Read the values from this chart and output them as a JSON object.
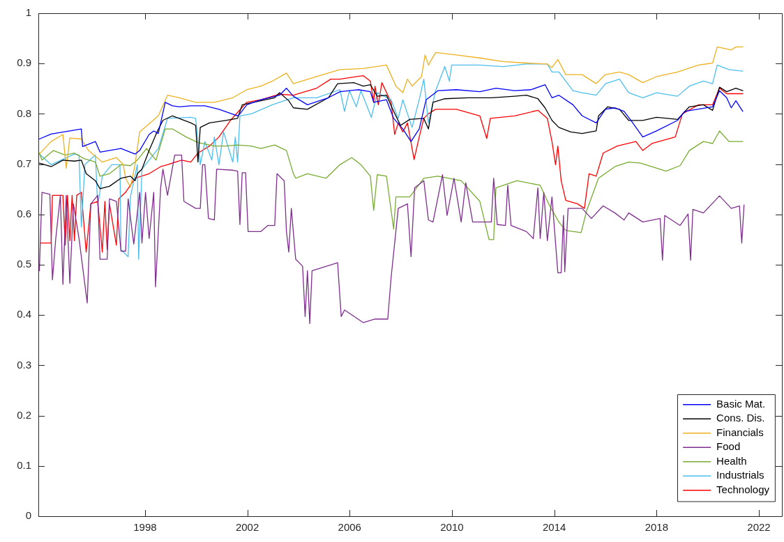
{
  "chart_data": {
    "type": "line",
    "xlim": [
      1993.83,
      2022.9
    ],
    "xticks": [
      1998,
      2002,
      2006,
      2010,
      2014,
      2018,
      2022
    ],
    "ylim": [
      0,
      1
    ],
    "yticks": [
      0,
      0.1,
      0.2,
      0.3,
      0.4,
      0.5,
      0.6,
      0.7,
      0.8,
      0.9,
      1
    ],
    "legend": "bottom right",
    "line_style": "solid",
    "series": [
      {
        "name": "Basic Mat.",
        "color": "#0000ff",
        "x": [
          1993.87,
          1994.33,
          1995.51,
          1995.56,
          1996.06,
          1996.24,
          1997.06,
          1997.61,
          1997.79,
          1998.16,
          1998.34,
          1998.52,
          1998.79,
          1999.07,
          1999.34,
          1999.79,
          2000.34,
          2000.89,
          2001.62,
          2001.71,
          2001.98,
          2002.53,
          2003.26,
          2003.53,
          2003.8,
          2004.35,
          2005.17,
          2005.62,
          2006.35,
          2006.81,
          2006.94,
          2007.44,
          2007.72,
          2008.08,
          2008.4,
          2008.72,
          2008.99,
          2009.45,
          2010.17,
          2011.09,
          2011.72,
          2012.45,
          2013.09,
          2013.64,
          2013.91,
          2014.18,
          2014.73,
          2015.09,
          2015.64,
          2016.0,
          2016.37,
          2016.73,
          2017.0,
          2017.46,
          2018.0,
          2018.82,
          2019.1,
          2020.19,
          2020.46,
          2020.74,
          2020.92,
          2021.1,
          2021.37
        ],
        "values": [
          0.75,
          0.76,
          0.77,
          0.735,
          0.745,
          0.724,
          0.731,
          0.72,
          0.727,
          0.759,
          0.766,
          0.761,
          0.823,
          0.816,
          0.814,
          0.816,
          0.816,
          0.809,
          0.796,
          0.8,
          0.818,
          0.828,
          0.837,
          0.851,
          0.835,
          0.818,
          0.832,
          0.844,
          0.848,
          0.844,
          0.823,
          0.828,
          0.791,
          0.77,
          0.745,
          0.77,
          0.828,
          0.846,
          0.848,
          0.844,
          0.851,
          0.846,
          0.848,
          0.858,
          0.832,
          0.837,
          0.818,
          0.796,
          0.782,
          0.809,
          0.812,
          0.805,
          0.787,
          0.754,
          0.766,
          0.787,
          0.805,
          0.814,
          0.846,
          0.832,
          0.812,
          0.826,
          0.805
        ]
      },
      {
        "name": "Cons. Dis.",
        "color": "#000000",
        "x": [
          1993.87,
          1994.33,
          1994.79,
          1995.24,
          1995.51,
          1995.7,
          1996.06,
          1996.24,
          1996.61,
          1997.06,
          1997.43,
          1997.61,
          1997.7,
          1997.88,
          1998.16,
          1998.47,
          1998.7,
          1999.07,
          1999.43,
          1999.79,
          1999.98,
          2000.07,
          2000.16,
          2000.52,
          2001.16,
          2001.62,
          2001.8,
          2002.53,
          2003.07,
          2003.26,
          2003.62,
          2003.8,
          2004.35,
          2005.17,
          2005.53,
          2006.17,
          2006.53,
          2006.81,
          2007.08,
          2007.44,
          2007.72,
          2007.99,
          2008.35,
          2008.9,
          2009.08,
          2009.26,
          2009.72,
          2010.63,
          2011.54,
          2012.45,
          2012.91,
          2013.36,
          2013.64,
          2013.91,
          2014.18,
          2014.64,
          2015.09,
          2015.64,
          2015.73,
          2016.09,
          2016.55,
          2016.91,
          2017.46,
          2018.0,
          2018.82,
          2019.28,
          2019.83,
          2020.19,
          2020.46,
          2020.74,
          2021.1,
          2021.37
        ],
        "values": [
          0.702,
          0.695,
          0.708,
          0.706,
          0.708,
          0.681,
          0.667,
          0.651,
          0.656,
          0.672,
          0.676,
          0.667,
          0.681,
          0.69,
          0.727,
          0.764,
          0.787,
          0.796,
          0.789,
          0.782,
          0.777,
          0.704,
          0.773,
          0.782,
          0.787,
          0.791,
          0.818,
          0.826,
          0.832,
          0.842,
          0.826,
          0.812,
          0.809,
          0.832,
          0.86,
          0.862,
          0.855,
          0.858,
          0.835,
          0.837,
          0.805,
          0.777,
          0.789,
          0.791,
          0.77,
          0.823,
          0.83,
          0.832,
          0.832,
          0.835,
          0.837,
          0.83,
          0.812,
          0.787,
          0.773,
          0.764,
          0.761,
          0.766,
          0.796,
          0.814,
          0.809,
          0.787,
          0.787,
          0.793,
          0.789,
          0.814,
          0.818,
          0.807,
          0.853,
          0.844,
          0.851,
          0.846
        ]
      },
      {
        "name": "Financials",
        "color": "#edb120",
        "x": [
          1993.87,
          1994.33,
          1994.79,
          1994.92,
          1995.06,
          1995.51,
          1995.79,
          1996.33,
          1996.88,
          1997.15,
          1997.24,
          1997.43,
          1997.61,
          1997.79,
          1998.16,
          1998.52,
          1998.88,
          1999.34,
          1999.98,
          2000.71,
          2001.43,
          2001.98,
          2002.53,
          2002.98,
          2003.53,
          2003.8,
          2004.71,
          2005.62,
          2006.53,
          2007.44,
          2007.81,
          2008.08,
          2008.26,
          2008.44,
          2008.81,
          2008.95,
          2009.08,
          2009.36,
          2010.17,
          2011.09,
          2012.0,
          2012.91,
          2013.73,
          2013.91,
          2014.14,
          2014.45,
          2015.09,
          2015.64,
          2016.0,
          2016.55,
          2016.91,
          2017.46,
          2018.0,
          2018.82,
          2019.64,
          2020.19,
          2020.37,
          2020.92,
          2021.1,
          2021.37
        ],
        "values": [
          0.72,
          0.745,
          0.759,
          0.692,
          0.752,
          0.75,
          0.727,
          0.704,
          0.713,
          0.699,
          0.672,
          0.654,
          0.699,
          0.764,
          0.78,
          0.796,
          0.837,
          0.832,
          0.823,
          0.823,
          0.832,
          0.848,
          0.855,
          0.865,
          0.881,
          0.86,
          0.874,
          0.888,
          0.89,
          0.897,
          0.855,
          0.842,
          0.869,
          0.855,
          0.874,
          0.917,
          0.897,
          0.922,
          0.917,
          0.911,
          0.904,
          0.901,
          0.899,
          0.892,
          0.908,
          0.878,
          0.878,
          0.86,
          0.878,
          0.883,
          0.878,
          0.862,
          0.874,
          0.883,
          0.897,
          0.901,
          0.933,
          0.927,
          0.933,
          0.933
        ]
      },
      {
        "name": "Food",
        "color": "#7e2f8e",
        "x": [
          1993.87,
          1993.97,
          1994.28,
          1994.38,
          1994.51,
          1994.69,
          1994.79,
          1994.92,
          1995.06,
          1995.2,
          1995.42,
          1995.74,
          1995.88,
          1996.15,
          1996.24,
          1996.52,
          1996.61,
          1996.88,
          1997.06,
          1997.24,
          1997.34,
          1997.56,
          1997.79,
          1997.88,
          1998.02,
          1998.16,
          1998.34,
          1998.41,
          1998.61,
          1998.7,
          1998.88,
          1999.16,
          1999.43,
          1999.52,
          1999.98,
          2000.16,
          2000.25,
          2000.34,
          2000.48,
          2000.71,
          2000.8,
          2001.43,
          2001.62,
          2001.71,
          2001.8,
          2001.93,
          2002.03,
          2002.53,
          2002.8,
          2003.07,
          2003.16,
          2003.44,
          2003.53,
          2003.62,
          2003.72,
          2003.89,
          2004.16,
          2004.26,
          2004.35,
          2004.44,
          2004.53,
          2005.53,
          2005.67,
          2005.8,
          2006.53,
          2006.99,
          2007.49,
          2007.62,
          2007.9,
          2008.26,
          2008.4,
          2008.54,
          2008.9,
          2009.08,
          2009.26,
          2009.63,
          2009.81,
          2010.08,
          2010.36,
          2010.54,
          2010.81,
          2011.54,
          2011.63,
          2011.77,
          2012.09,
          2012.18,
          2012.31,
          2012.91,
          2013.18,
          2013.36,
          2013.45,
          2013.59,
          2013.73,
          2013.91,
          2014.14,
          2014.27,
          2014.36,
          2014.41,
          2014.54,
          2015.09,
          2015.45,
          2015.91,
          2016.37,
          2016.73,
          2016.91,
          2017.46,
          2018.14,
          2018.23,
          2018.32,
          2018.92,
          2019.23,
          2019.33,
          2019.42,
          2019.83,
          2020.46,
          2020.92,
          2021.24,
          2021.33,
          2021.42
        ],
        "values": [
          0.488,
          0.644,
          0.64,
          0.47,
          0.552,
          0.638,
          0.461,
          0.638,
          0.463,
          0.621,
          0.552,
          0.424,
          0.621,
          0.638,
          0.511,
          0.511,
          0.631,
          0.626,
          0.527,
          0.527,
          0.631,
          0.541,
          0.644,
          0.543,
          0.644,
          0.552,
          0.644,
          0.456,
          0.653,
          0.69,
          0.638,
          0.718,
          0.718,
          0.626,
          0.612,
          0.612,
          0.699,
          0.699,
          0.592,
          0.589,
          0.69,
          0.688,
          0.686,
          0.58,
          0.683,
          0.683,
          0.566,
          0.566,
          0.578,
          0.578,
          0.681,
          0.667,
          0.566,
          0.525,
          0.612,
          0.511,
          0.497,
          0.397,
          0.488,
          0.383,
          0.488,
          0.504,
          0.397,
          0.41,
          0.385,
          0.392,
          0.392,
          0.474,
          0.612,
          0.621,
          0.516,
          0.653,
          0.667,
          0.589,
          0.585,
          0.679,
          0.598,
          0.672,
          0.585,
          0.663,
          0.585,
          0.585,
          0.672,
          0.58,
          0.578,
          0.658,
          0.578,
          0.566,
          0.552,
          0.653,
          0.552,
          0.644,
          0.548,
          0.635,
          0.484,
          0.484,
          0.598,
          0.486,
          0.612,
          0.612,
          0.592,
          0.617,
          0.603,
          0.589,
          0.603,
          0.585,
          0.592,
          0.509,
          0.598,
          0.578,
          0.601,
          0.509,
          0.61,
          0.603,
          0.637,
          0.612,
          0.617,
          0.543,
          0.619
        ]
      },
      {
        "name": "Health",
        "color": "#77ac30",
        "x": [
          1993.87,
          1993.97,
          1994.42,
          1994.88,
          1995.24,
          1995.61,
          1996.06,
          1996.24,
          1996.61,
          1997.06,
          1997.43,
          1997.7,
          1998.06,
          1998.43,
          1998.79,
          1999.07,
          1999.61,
          2000.07,
          2000.71,
          2001.16,
          2001.62,
          2002.16,
          2002.53,
          2003.07,
          2003.53,
          2003.8,
          2003.89,
          2004.35,
          2005.08,
          2005.62,
          2006.08,
          2006.44,
          2006.81,
          2006.94,
          2007.08,
          2007.44,
          2007.72,
          2007.81,
          2008.35,
          2008.9,
          2009.45,
          2010.36,
          2011.09,
          2011.45,
          2011.63,
          2011.72,
          2012.54,
          2013.45,
          2013.82,
          2014.18,
          2014.45,
          2015.05,
          2015.27,
          2015.73,
          2016.37,
          2016.91,
          2017.37,
          2018.37,
          2018.92,
          2019.28,
          2019.83,
          2020.19,
          2020.46,
          2020.83,
          2021.37
        ],
        "values": [
          0.722,
          0.708,
          0.727,
          0.718,
          0.722,
          0.711,
          0.704,
          0.676,
          0.681,
          0.699,
          0.697,
          0.708,
          0.731,
          0.708,
          0.77,
          0.77,
          0.754,
          0.743,
          0.736,
          0.736,
          0.738,
          0.736,
          0.731,
          0.738,
          0.727,
          0.681,
          0.672,
          0.681,
          0.672,
          0.699,
          0.713,
          0.699,
          0.676,
          0.608,
          0.679,
          0.676,
          0.571,
          0.635,
          0.635,
          0.672,
          0.676,
          0.667,
          0.626,
          0.55,
          0.55,
          0.653,
          0.667,
          0.658,
          0.617,
          0.585,
          0.568,
          0.564,
          0.608,
          0.672,
          0.695,
          0.704,
          0.702,
          0.686,
          0.697,
          0.727,
          0.745,
          0.741,
          0.766,
          0.745,
          0.745
        ]
      },
      {
        "name": "Industrials",
        "color": "#4dbeee",
        "x": [
          1993.87,
          1994.33,
          1995.24,
          1995.42,
          1995.51,
          1995.65,
          1996.06,
          1996.15,
          1996.33,
          1996.7,
          1997.02,
          1997.06,
          1997.34,
          1997.43,
          1997.7,
          1997.75,
          1997.88,
          1998.52,
          1998.88,
          1999.79,
          1999.98,
          2000.16,
          2000.34,
          2000.61,
          2000.71,
          2000.89,
          2001.07,
          2001.43,
          2001.53,
          2001.62,
          2001.71,
          2002.16,
          2002.98,
          2003.44,
          2003.8,
          2004.71,
          2005.62,
          2005.8,
          2005.99,
          2006.26,
          2006.44,
          2006.85,
          2007.08,
          2007.62,
          2007.9,
          2008.08,
          2008.44,
          2008.72,
          2008.9,
          2009.08,
          2009.36,
          2009.72,
          2009.9,
          2009.99,
          2011.09,
          2012.0,
          2012.91,
          2013.73,
          2013.91,
          2014.18,
          2014.73,
          2015.09,
          2015.64,
          2016.0,
          2016.55,
          2016.91,
          2017.46,
          2018.0,
          2018.82,
          2019.28,
          2019.83,
          2020.19,
          2020.37,
          2020.83,
          2021.37
        ],
        "values": [
          0.72,
          0.699,
          0.72,
          0.718,
          0.575,
          0.699,
          0.718,
          0.617,
          0.676,
          0.699,
          0.699,
          0.53,
          0.516,
          0.635,
          0.699,
          0.511,
          0.69,
          0.731,
          0.791,
          0.793,
          0.791,
          0.699,
          0.745,
          0.708,
          0.754,
          0.699,
          0.764,
          0.704,
          0.754,
          0.704,
          0.796,
          0.8,
          0.818,
          0.826,
          0.832,
          0.832,
          0.848,
          0.805,
          0.846,
          0.814,
          0.846,
          0.793,
          0.842,
          0.828,
          0.791,
          0.828,
          0.773,
          0.828,
          0.869,
          0.782,
          0.846,
          0.894,
          0.865,
          0.897,
          0.897,
          0.894,
          0.899,
          0.899,
          0.883,
          0.883,
          0.846,
          0.842,
          0.837,
          0.86,
          0.869,
          0.842,
          0.832,
          0.842,
          0.835,
          0.855,
          0.865,
          0.86,
          0.897,
          0.888,
          0.885
        ]
      },
      {
        "name": "Technology",
        "color": "#ff0000",
        "x": [
          1993.92,
          1994.33,
          1994.38,
          1994.79,
          1994.88,
          1994.97,
          1995.06,
          1995.15,
          1995.24,
          1995.33,
          1995.51,
          1995.7,
          1995.88,
          1996.15,
          1996.33,
          1996.43,
          1996.52,
          1996.61,
          1996.88,
          1996.97,
          1997.24,
          1997.61,
          1998.16,
          1998.61,
          1998.88,
          1999.43,
          1999.79,
          2000.07,
          2000.52,
          2000.89,
          2001.34,
          2001.98,
          2002.53,
          2003.26,
          2003.8,
          2004.71,
          2005.26,
          2005.62,
          2006.53,
          2006.81,
          2006.94,
          2006.99,
          2007.12,
          2007.26,
          2007.62,
          2007.76,
          2007.9,
          2008.08,
          2008.26,
          2008.52,
          2008.72,
          2008.9,
          2009.08,
          2009.36,
          2010.17,
          2011.09,
          2011.36,
          2011.5,
          2012.45,
          2013.36,
          2013.73,
          2013.91,
          2014.05,
          2014.14,
          2014.27,
          2014.45,
          2014.91,
          2015.18,
          2015.36,
          2015.64,
          2015.91,
          2016.46,
          2017.19,
          2017.46,
          2017.82,
          2018.73,
          2019.01,
          2019.64,
          2020.19,
          2020.46,
          2020.74,
          2021.37
        ],
        "values": [
          0.543,
          0.543,
          0.638,
          0.638,
          0.539,
          0.638,
          0.548,
          0.638,
          0.548,
          0.638,
          0.644,
          0.525,
          0.621,
          0.626,
          0.525,
          0.626,
          0.53,
          0.621,
          0.539,
          0.631,
          0.644,
          0.672,
          0.681,
          0.695,
          0.699,
          0.708,
          0.704,
          0.722,
          0.736,
          0.754,
          0.787,
          0.823,
          0.828,
          0.839,
          0.837,
          0.851,
          0.869,
          0.869,
          0.876,
          0.865,
          0.823,
          0.855,
          0.818,
          0.862,
          0.823,
          0.759,
          0.782,
          0.764,
          0.782,
          0.709,
          0.754,
          0.791,
          0.8,
          0.809,
          0.809,
          0.796,
          0.751,
          0.791,
          0.796,
          0.807,
          0.791,
          0.745,
          0.699,
          0.736,
          0.667,
          0.628,
          0.621,
          0.612,
          0.681,
          0.676,
          0.722,
          0.736,
          0.745,
          0.727,
          0.741,
          0.754,
          0.8,
          0.818,
          0.818,
          0.851,
          0.84,
          0.84
        ]
      }
    ]
  }
}
